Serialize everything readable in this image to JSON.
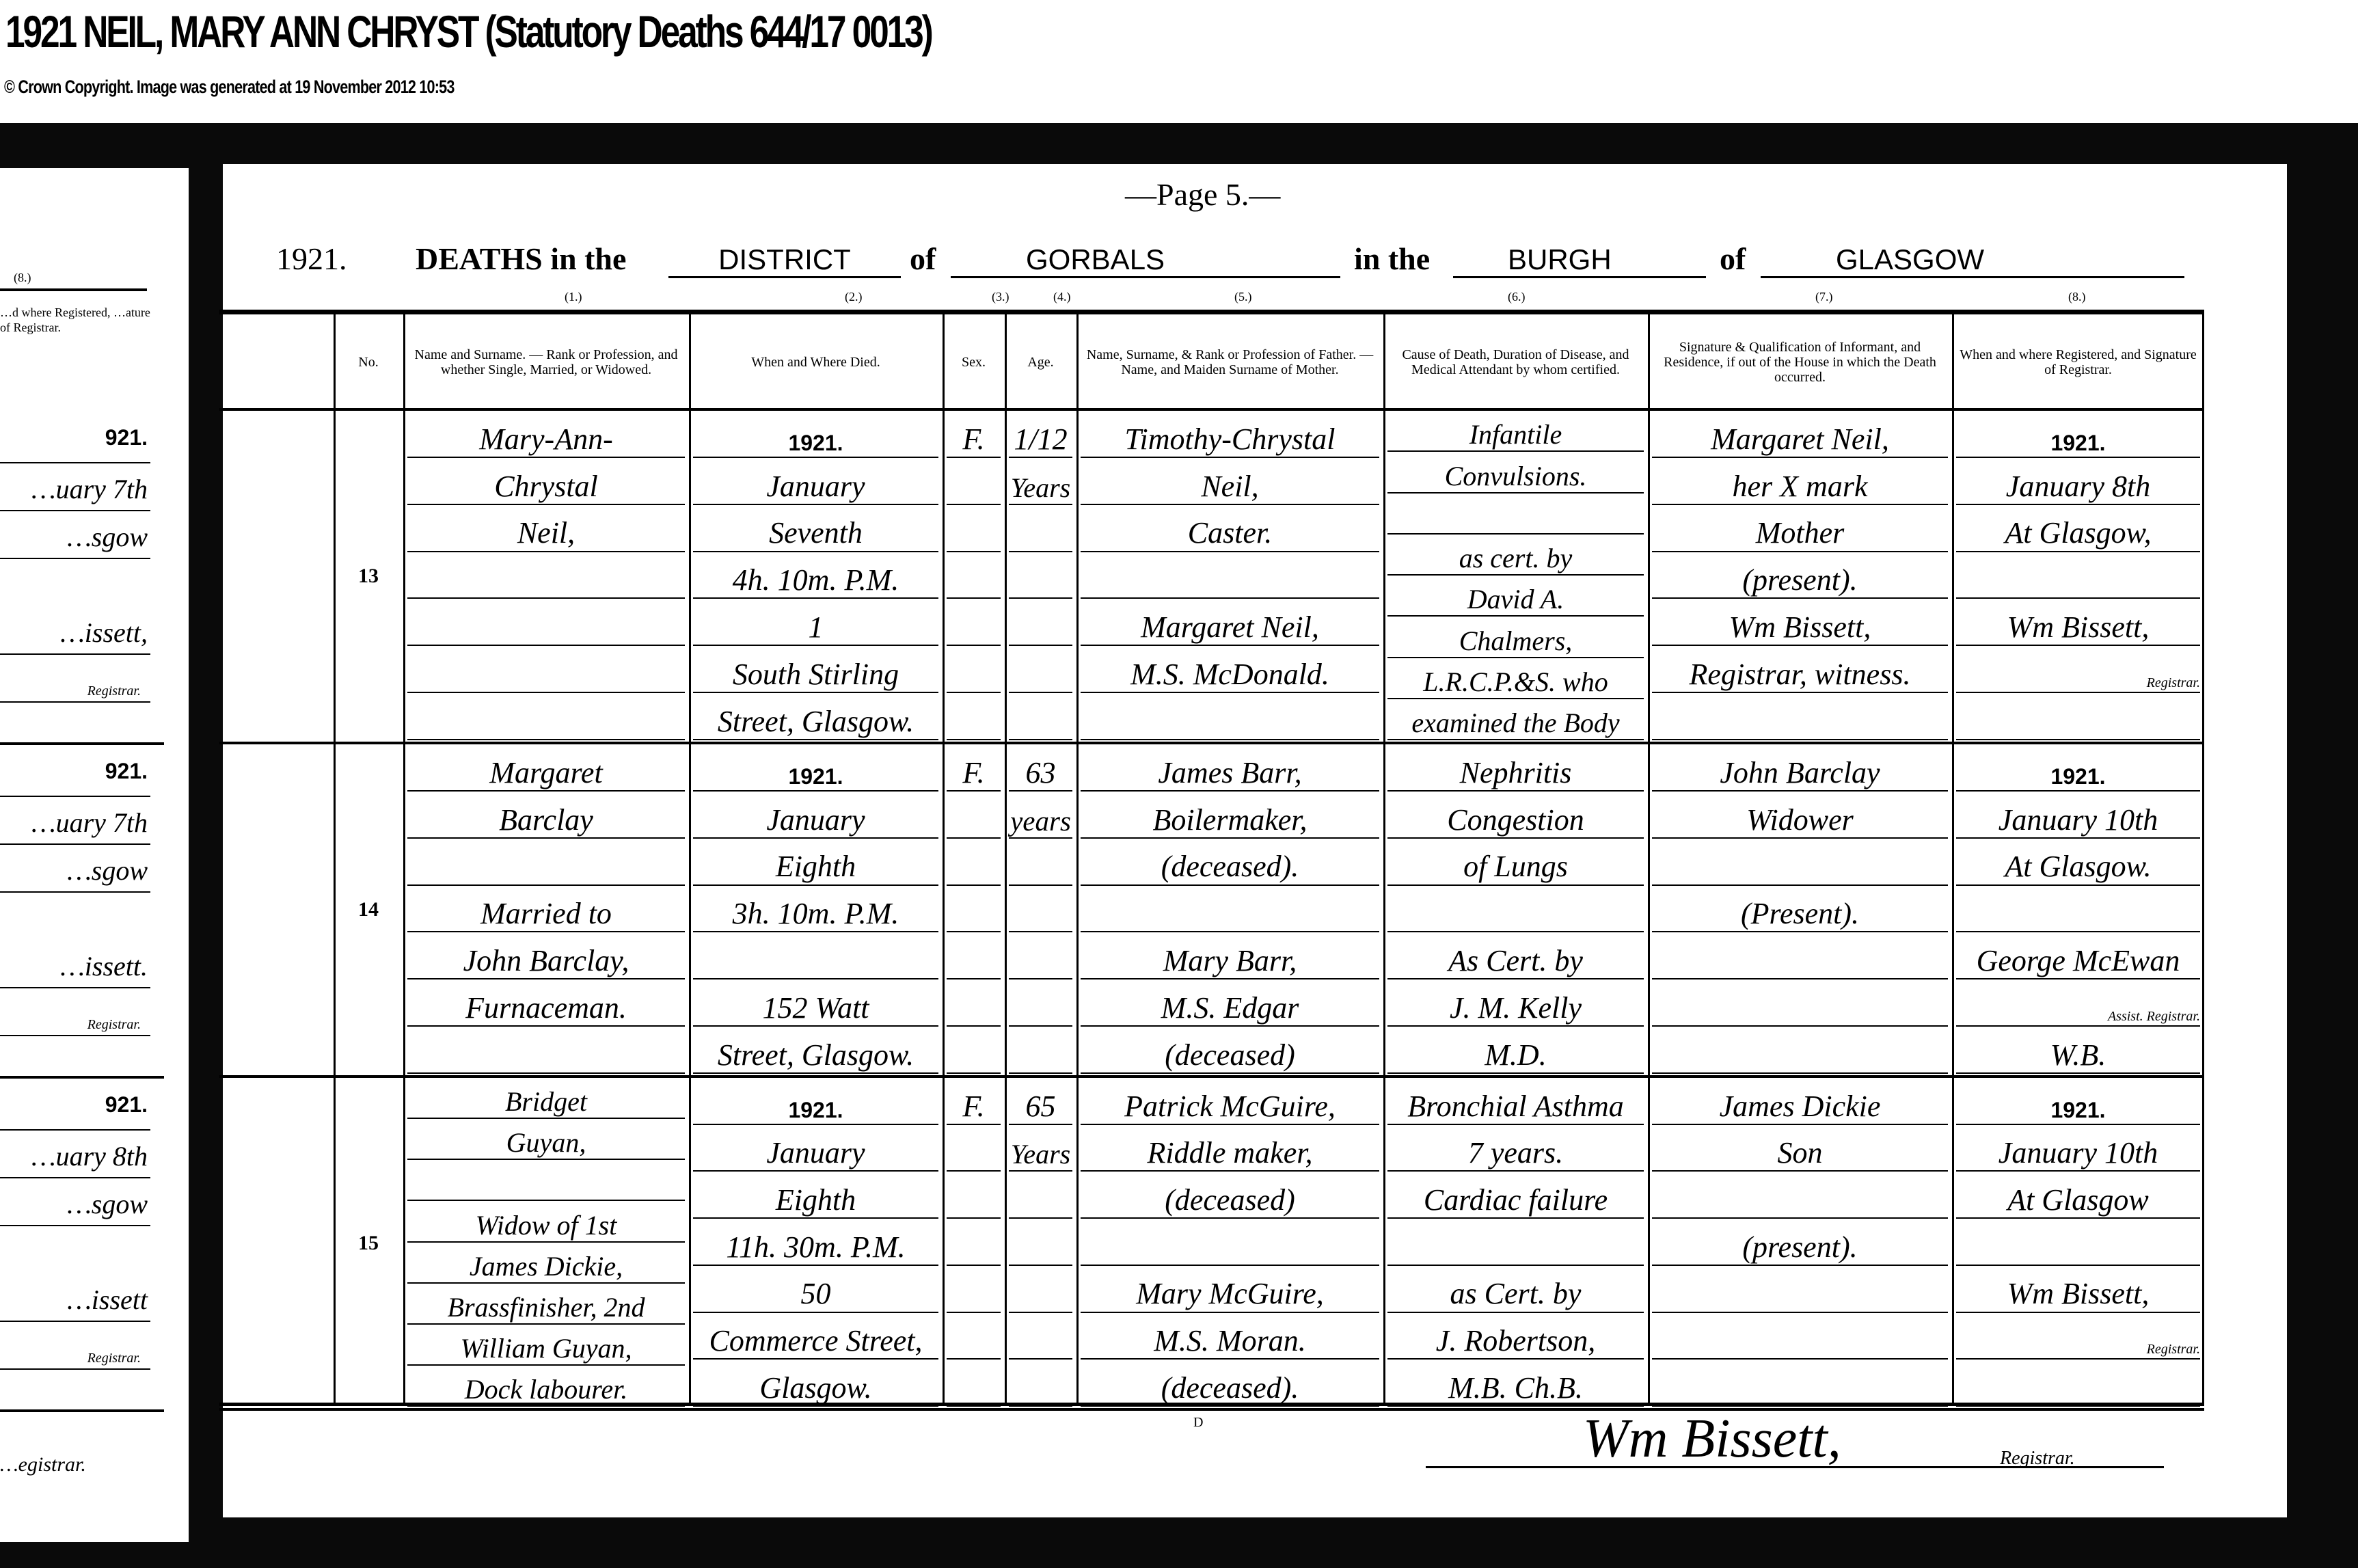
{
  "header": {
    "title": "1921 NEIL, MARY ANN CHRYST (Statutory Deaths 644/17 0013)",
    "copyright": "© Crown Copyright. Image was generated at 19 November 2012 10:53"
  },
  "register": {
    "page_label": "—Page 5.—",
    "year": "1921.",
    "deaths_in_the": "DEATHS in the",
    "district_type": "DISTRICT",
    "of_1": "of",
    "district_name": "GORBALS",
    "in_the": "in the",
    "burgh_type": "BURGH",
    "of_2": "of",
    "burgh_name": "GLASGOW",
    "column_numbers": [
      "(1.)",
      "(2.)",
      "(3.)",
      "(4.)",
      "(5.)",
      "(6.)",
      "(7.)",
      "(8.)"
    ],
    "columns": [
      "No.",
      "Name and Surname. — Rank or Profession, and whether Single, Married, or Widowed.",
      "When and Where Died.",
      "Sex.",
      "Age.",
      "Name, Surname, & Rank or Profession of Father. — Name, and Maiden Surname of Mother.",
      "Cause of Death, Duration of Disease, and Medical Attendant by whom certified.",
      "Signature & Qualification of Informant, and Residence, if out of the House in which the Death occurred.",
      "When and where Registered, and Signature of Registrar."
    ],
    "entries": [
      {
        "no": "13",
        "name": [
          "Mary-Ann-",
          "Chrystal",
          "Neil,",
          "",
          "",
          "",
          ""
        ],
        "when": [
          "1921.",
          "January",
          "Seventh",
          "4h. 10m. P.M.",
          "1",
          "South Stirling",
          "Street, Glasgow."
        ],
        "sex": [
          "F."
        ],
        "age": [
          "1/12",
          "Years"
        ],
        "father": [
          "Timothy-Chrystal",
          "Neil,",
          "Caster.",
          "",
          "Margaret Neil,",
          "M.S. McDonald.",
          ""
        ],
        "cause": [
          "Infantile",
          "Convulsions.",
          "",
          "as cert. by",
          "David A.",
          "Chalmers,",
          "L.R.C.P.&S. who",
          "examined the Body"
        ],
        "informant": [
          "Margaret Neil,",
          "her X mark",
          "Mother",
          "(present).",
          "Wm Bissett,",
          "Registrar, witness.",
          ""
        ],
        "registered": [
          "1921.",
          "January 8th",
          "At Glasgow,",
          "",
          "Wm Bissett,",
          "Registrar.",
          ""
        ]
      },
      {
        "no": "14",
        "name": [
          "Margaret",
          "Barclay",
          "",
          "Married to",
          "John Barclay,",
          "Furnaceman.",
          ""
        ],
        "when": [
          "1921.",
          "January",
          "Eighth",
          "3h. 10m. P.M.",
          "",
          "152 Watt",
          "Street, Glasgow."
        ],
        "sex": [
          "F."
        ],
        "age": [
          "63",
          "years"
        ],
        "father": [
          "James Barr,",
          "Boilermaker,",
          "(deceased).",
          "",
          "Mary Barr,",
          "M.S. Edgar",
          "(deceased)"
        ],
        "cause": [
          "Nephritis",
          "Congestion",
          "of Lungs",
          "",
          "As Cert. by",
          "J. M. Kelly",
          "M.D."
        ],
        "informant": [
          "John Barclay",
          "Widower",
          "",
          "(Present).",
          "",
          "",
          ""
        ],
        "registered": [
          "1921.",
          "January 10th",
          "At Glasgow.",
          "",
          "George McEwan",
          "Assist. Registrar.",
          "W.B."
        ]
      },
      {
        "no": "15",
        "name": [
          "Bridget",
          "Guyan,",
          "",
          "Widow of 1st",
          "James Dickie,",
          "Brassfinisher, 2nd",
          "William Guyan,",
          "Dock labourer."
        ],
        "when": [
          "1921.",
          "January",
          "Eighth",
          "11h. 30m. P.M.",
          "50",
          "Commerce Street,",
          "Glasgow."
        ],
        "sex": [
          "F."
        ],
        "age": [
          "65",
          "Years"
        ],
        "father": [
          "Patrick McGuire,",
          "Riddle maker,",
          "(deceased)",
          "",
          "Mary McGuire,",
          "M.S. Moran.",
          "(deceased)."
        ],
        "cause": [
          "Bronchial Asthma",
          "7 years.",
          "Cardiac failure",
          "",
          "as Cert. by",
          "J. Robertson,",
          "M.B. Ch.B."
        ],
        "informant": [
          "James Dickie",
          "Son",
          "",
          "(present).",
          "",
          "",
          ""
        ],
        "registered": [
          "1921.",
          "January 10th",
          "At Glasgow",
          "",
          "Wm Bissett,",
          "Registrar.",
          ""
        ]
      }
    ],
    "footer_signature": "Wm Bissett,",
    "footer_registrar": "Registrar.",
    "footer_mark": "D"
  },
  "previous_page": {
    "column_number": "(8.)",
    "column_header": "…d where Registered, …ature of Registrar.",
    "entries": [
      {
        "year": "921.",
        "date": "…uary 7th",
        "place": "…sgow",
        "signature": "…issett,",
        "registrar": "Registrar."
      },
      {
        "year": "921.",
        "date": "…uary 7th",
        "place": "…sgow",
        "signature": "…issett.",
        "registrar": "Registrar."
      },
      {
        "year": "921.",
        "date": "…uary 8th",
        "place": "…sgow",
        "signature": "…issett",
        "registrar": "Registrar."
      }
    ],
    "footer": "…egistrar."
  }
}
